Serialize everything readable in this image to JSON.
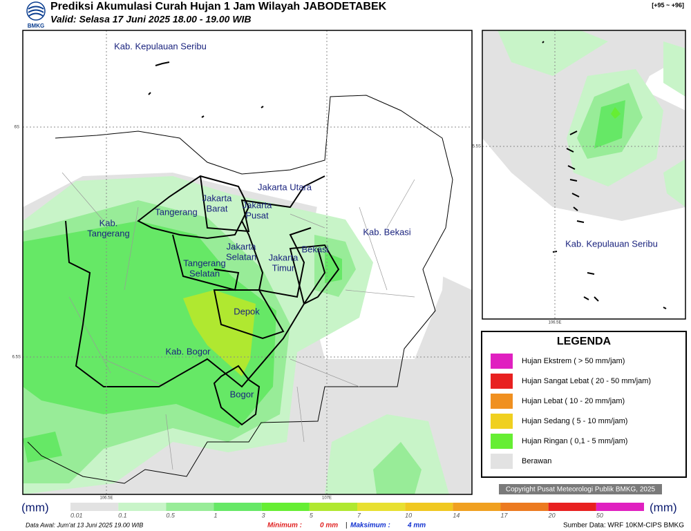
{
  "header": {
    "title": "Prediksi Akumulasi Curah Hujan 1 Jam Wilayah JABODETABEK",
    "valid": "Valid: Selasa 17 Juni 2025 18.00 - 19.00 WIB",
    "code": "[+95 ~ +96]",
    "logo": "BMKG"
  },
  "map": {
    "labels": [
      {
        "lines": [
          "Kab. Kepulauan Seribu"
        ]
      },
      {
        "lines": [
          "Jakarta Utara"
        ]
      },
      {
        "lines": [
          "Jakarta",
          "Barat"
        ]
      },
      {
        "lines": [
          "Jakarta",
          "Pusat"
        ]
      },
      {
        "lines": [
          "Tangerang"
        ]
      },
      {
        "lines": [
          "Kab.",
          "Tangerang"
        ]
      },
      {
        "lines": [
          "Jakarta",
          "Selatan"
        ]
      },
      {
        "lines": [
          "Jakarta",
          "Timur"
        ]
      },
      {
        "lines": [
          "Bekasi"
        ]
      },
      {
        "lines": [
          "Kab. Bekasi"
        ]
      },
      {
        "lines": [
          "Tangerang",
          "Selatan"
        ]
      },
      {
        "lines": [
          "Depok"
        ]
      },
      {
        "lines": [
          "Kab. Bogor"
        ]
      },
      {
        "lines": [
          "Bogor"
        ]
      }
    ],
    "grid": [
      "6S",
      "6.5S",
      "106.5E",
      "107E"
    ]
  },
  "inset": {
    "label": "Kab. Kepulauan Seribu",
    "grid": [
      "5.5S",
      "106.5E"
    ]
  },
  "legend": {
    "title": "LEGENDA",
    "items": [
      {
        "label": "Hujan Ekstrem ( > 50 mm/jam)",
        "color": "#e020c0"
      },
      {
        "label": "Hujan Sangat Lebat ( 20 - 50 mm/jam)",
        "color": "#e82020"
      },
      {
        "label": "Hujan Lebat ( 10 - 20 mm/jam)",
        "color": "#f09020"
      },
      {
        "label": "Hujan Sedang ( 5 - 10 mm/jam)",
        "color": "#f0d020"
      },
      {
        "label": "Hujan Ringan ( 0,1 - 5 mm/jam)",
        "color": "#66ee33"
      },
      {
        "label": "Berawan",
        "color": "#e2e2e2"
      }
    ]
  },
  "copyright": "Copyright Pusat Meteorologi Publik BMKG, 2025",
  "colorbar": {
    "unit": "(mm)",
    "ticks": [
      0.01,
      0.1,
      0.5,
      1,
      3,
      5,
      7,
      10,
      14,
      17,
      20,
      50
    ],
    "colors": [
      "#e2e2e2",
      "#c8f4c8",
      "#98ec98",
      "#66e866",
      "#66ee33",
      "#b0e830",
      "#e8e030",
      "#f0c820",
      "#f0a020",
      "#ec7a20",
      "#e82020",
      "#e020c0"
    ]
  },
  "footer": {
    "data_awal": "Data Awal: Jum'at 13 Juni 2025 19.00 WIB",
    "min_label": "Minimum :",
    "min_value": "0 mm",
    "separator": "|",
    "max_label": "Maksimum :",
    "max_value": "4 mm",
    "source": "Sumber Data: WRF 10KM-CIPS BMKG"
  }
}
